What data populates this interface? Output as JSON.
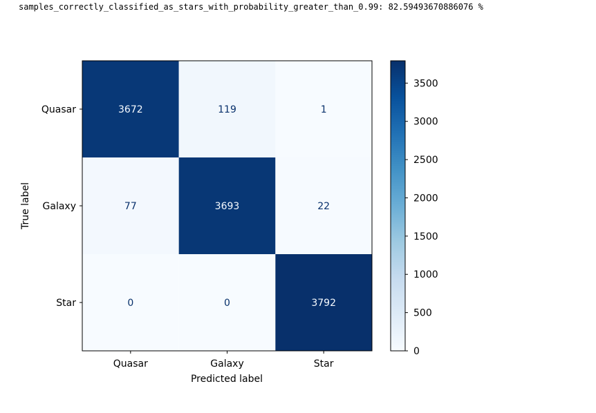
{
  "output": {
    "text": "samples_correctly_classified_as_stars_with_probability_greater_than_0.99: 82.59493670886076 %"
  },
  "chart_data": {
    "type": "heatmap",
    "title": "",
    "xlabel": "Predicted label",
    "ylabel": "True label",
    "x_categories": [
      "Quasar",
      "Galaxy",
      "Star"
    ],
    "y_categories": [
      "Quasar",
      "Galaxy",
      "Star"
    ],
    "values": [
      [
        3672,
        119,
        1
      ],
      [
        77,
        3693,
        22
      ],
      [
        0,
        0,
        3792
      ]
    ],
    "colormap": "Blues",
    "colorbar": {
      "min": 0,
      "max": 3792,
      "ticks": [
        0,
        500,
        1000,
        1500,
        2000,
        2500,
        3000,
        3500
      ]
    },
    "colors": {
      "low": "#f7fbff",
      "high": "#08306b",
      "text_dark": "#08306b",
      "text_light": "#f7fbff"
    }
  }
}
